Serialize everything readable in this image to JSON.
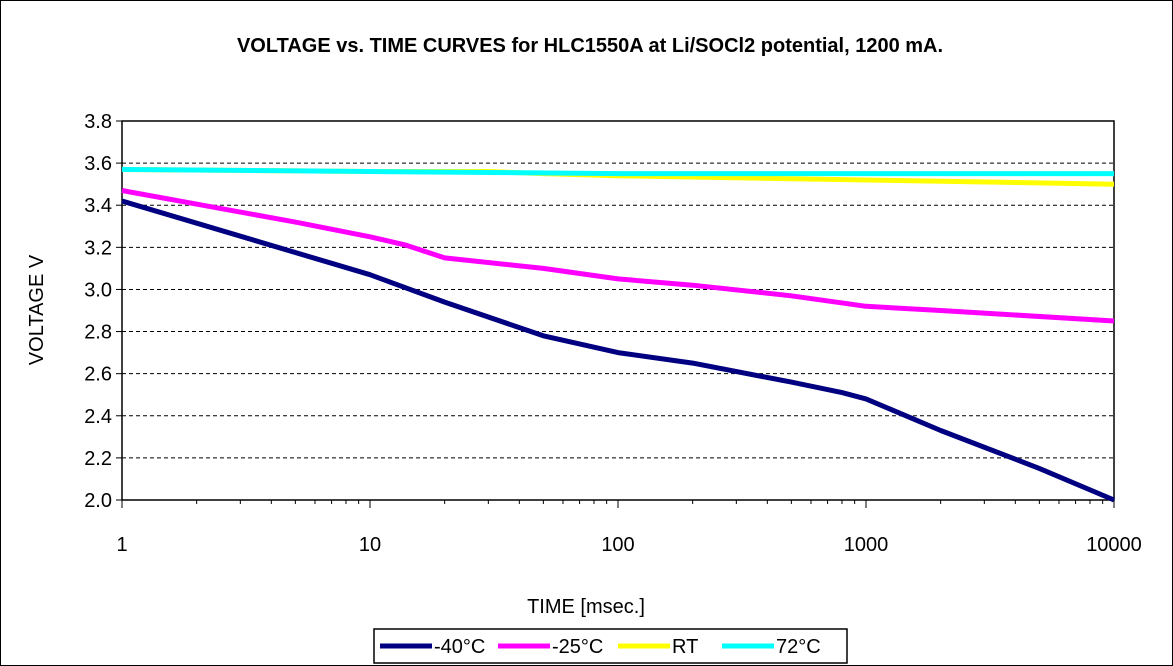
{
  "chart_data": {
    "type": "line",
    "title": "VOLTAGE vs. TIME CURVES for HLC1550A at Li/SOCl2 potential, 1200 mA.",
    "xlabel": "TIME  [msec.]",
    "ylabel": "VOLTAGE  V",
    "x_scale": "log",
    "xlim": [
      1,
      10000
    ],
    "ylim": [
      2.0,
      3.8
    ],
    "x_ticks": [
      1,
      10,
      100,
      1000,
      10000
    ],
    "x_tick_labels": [
      "1",
      "10",
      "100",
      "1000",
      "10000"
    ],
    "y_ticks": [
      2.0,
      2.2,
      2.4,
      2.6,
      2.8,
      3.0,
      3.2,
      3.4,
      3.6,
      3.8
    ],
    "y_tick_labels": [
      "2.0",
      "2.2",
      "2.4",
      "2.6",
      "2.8",
      "3.0",
      "3.2",
      "3.4",
      "3.6",
      "3.8"
    ],
    "grid": "horizontal dashed",
    "legend_position": "bottom",
    "series": [
      {
        "name": "-40°C",
        "color": "#000080",
        "points": [
          [
            1,
            3.42
          ],
          [
            10,
            3.07
          ],
          [
            20,
            2.94
          ],
          [
            50,
            2.78
          ],
          [
            100,
            2.7
          ],
          [
            200,
            2.65
          ],
          [
            500,
            2.56
          ],
          [
            800,
            2.51
          ],
          [
            1000,
            2.48
          ],
          [
            2000,
            2.33
          ],
          [
            5000,
            2.15
          ],
          [
            10000,
            2.0
          ]
        ]
      },
      {
        "name": "-25°C",
        "color": "#FF00FF",
        "points": [
          [
            1,
            3.47
          ],
          [
            5,
            3.32
          ],
          [
            10,
            3.25
          ],
          [
            14,
            3.21
          ],
          [
            20,
            3.15
          ],
          [
            50,
            3.1
          ],
          [
            100,
            3.05
          ],
          [
            200,
            3.02
          ],
          [
            500,
            2.97
          ],
          [
            1000,
            2.92
          ],
          [
            2000,
            2.9
          ],
          [
            10000,
            2.85
          ]
        ]
      },
      {
        "name": "RT",
        "color": "#FFFF00",
        "points": [
          [
            1,
            3.57
          ],
          [
            10,
            3.56
          ],
          [
            30,
            3.56
          ],
          [
            50,
            3.55
          ],
          [
            100,
            3.54
          ],
          [
            1000,
            3.52
          ],
          [
            10000,
            3.5
          ]
        ]
      },
      {
        "name": "72°C",
        "color": "#00FFFF",
        "points": [
          [
            1,
            3.57
          ],
          [
            10,
            3.56
          ],
          [
            100,
            3.55
          ],
          [
            1000,
            3.55
          ],
          [
            10000,
            3.55
          ]
        ]
      }
    ]
  }
}
